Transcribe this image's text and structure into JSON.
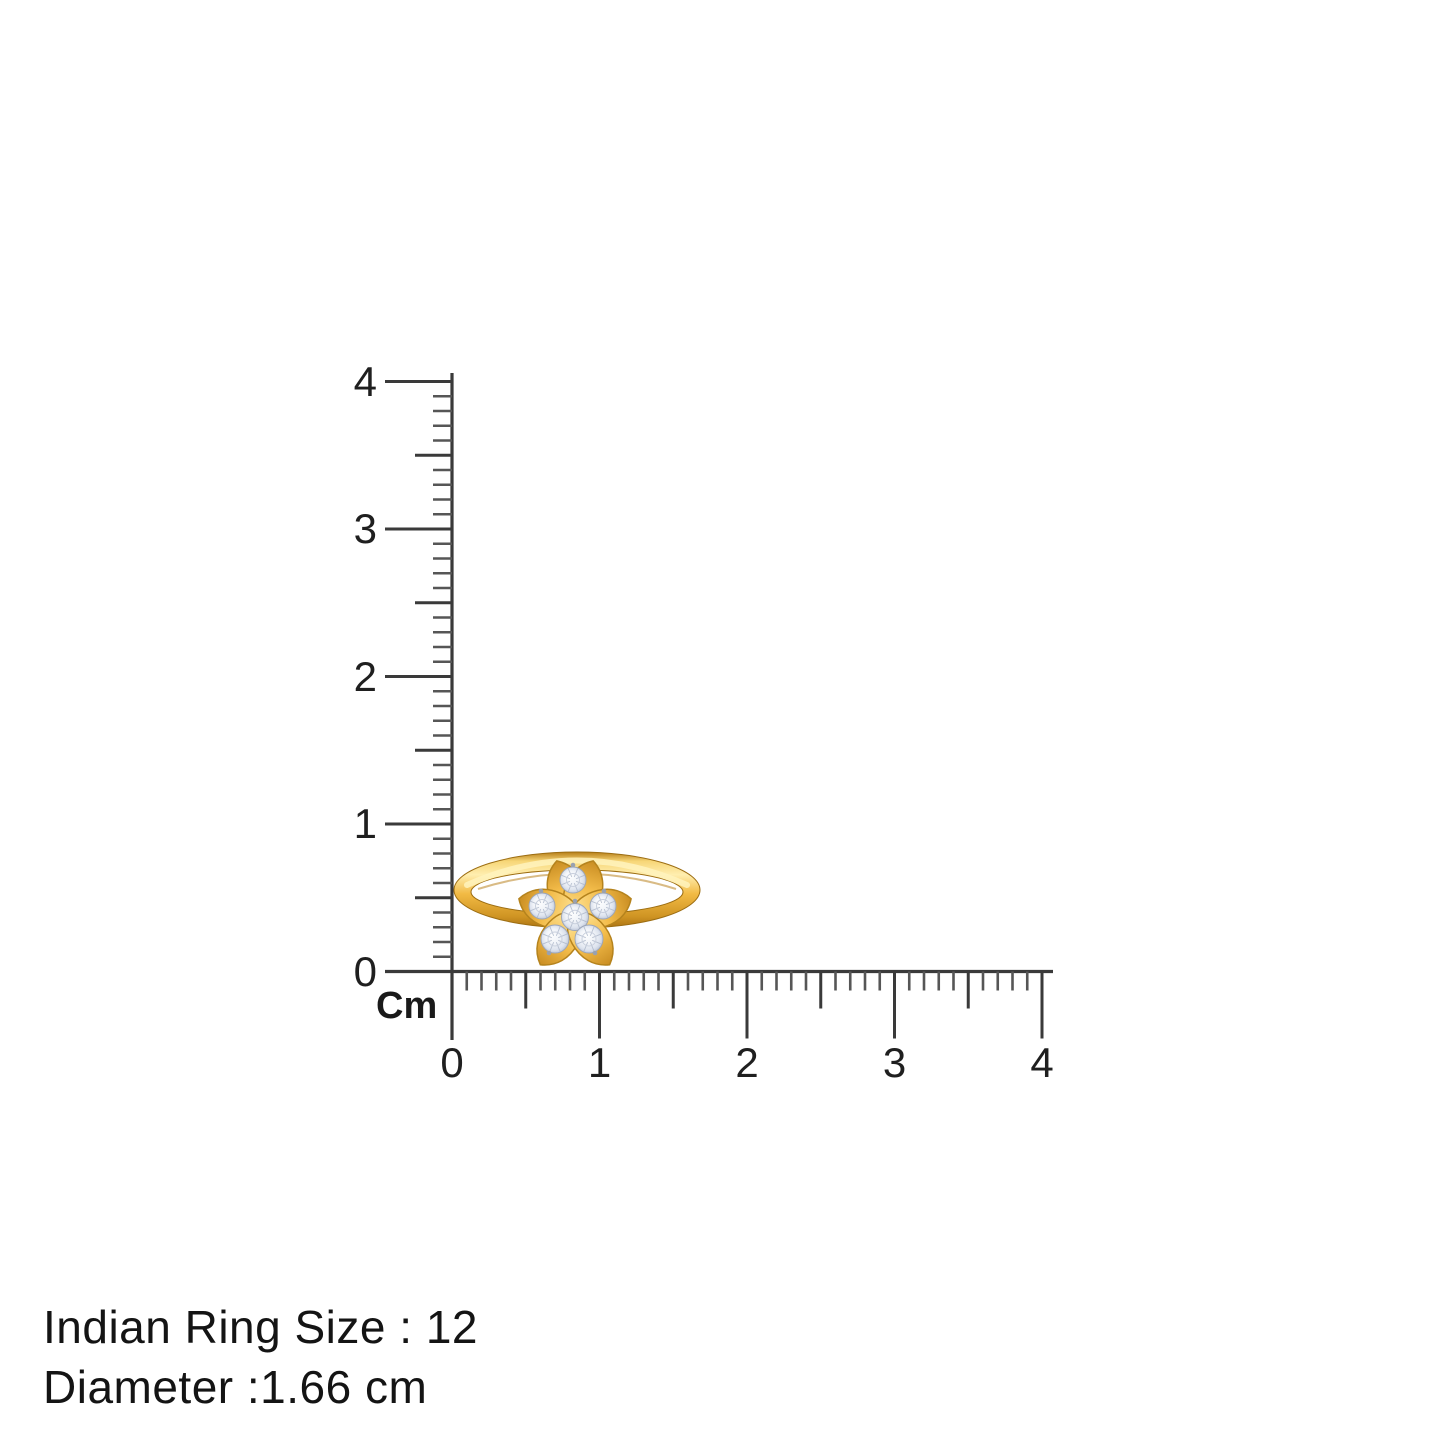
{
  "ruler": {
    "unit_label": "Cm",
    "vertical_labels": [
      "0",
      "1",
      "2",
      "3",
      "4"
    ],
    "horizontal_labels": [
      "0",
      "1",
      "2",
      "3",
      "4"
    ],
    "tick_color": "#3a3a3a",
    "minor_tick_color": "#565656",
    "label_color": "#1f1f1f"
  },
  "product": {
    "name": "gold flower ring with round diamonds",
    "stone_count": 6,
    "band_gold_light": "#ffeeaf",
    "band_gold": "#f2ba44",
    "band_gold_dark": "#c0861c",
    "diamond_light": "#ffffff",
    "diamond_mid": "#e9edf4",
    "diamond_dark": "#b3bdd1"
  },
  "info": {
    "ring_size_line": "Indian Ring Size : 12",
    "diameter_line": "Diameter :1.66 cm"
  }
}
